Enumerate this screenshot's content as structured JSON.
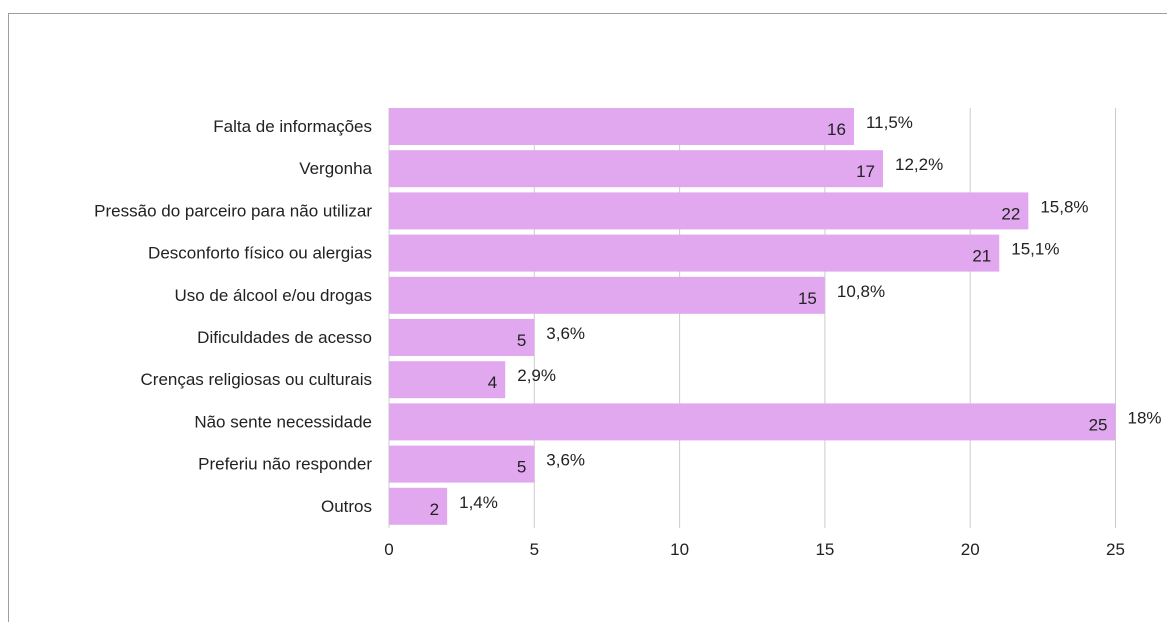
{
  "chart_data": {
    "type": "bar",
    "orientation": "horizontal",
    "categories": [
      "Falta de informações",
      "Vergonha",
      "Pressão do parceiro para não utilizar",
      "Desconforto físico ou alergias",
      "Uso de álcool e/ou drogas",
      "Dificuldades de acesso",
      "Crenças religiosas ou culturais",
      "Não sente necessidade",
      "Preferiu não responder",
      "Outros"
    ],
    "values": [
      16,
      17,
      22,
      21,
      15,
      5,
      4,
      25,
      5,
      2
    ],
    "percent_labels": [
      "11,5%",
      "12,2%",
      "15,8%",
      "15,1%",
      "10,8%",
      "3,6%",
      "2,9%",
      "18%",
      "3,6%",
      "1,4%"
    ],
    "xlim": [
      0,
      25
    ],
    "xticks": [
      0,
      5,
      10,
      15,
      20,
      25
    ],
    "title": "",
    "xlabel": "",
    "ylabel": "",
    "grid": true,
    "legend": "none",
    "colors": {
      "bar": "#e1a8ef",
      "grid": "#cccccc",
      "frame": "#9e9e9e"
    }
  }
}
